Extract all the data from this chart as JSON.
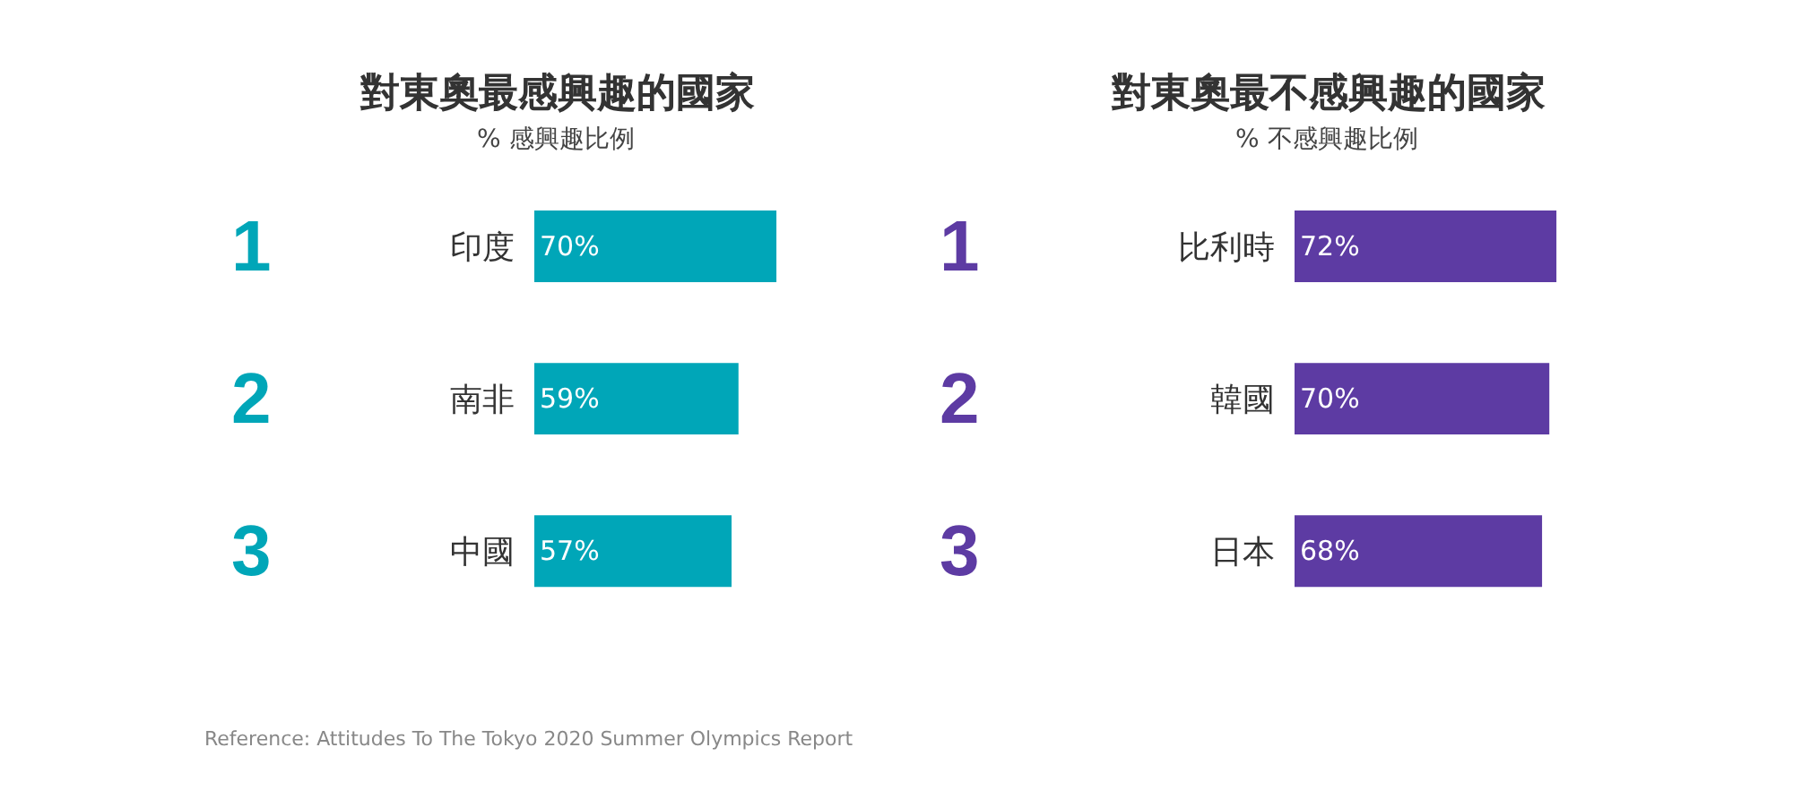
{
  "chart_data": [
    {
      "type": "bar",
      "orientation": "horizontal",
      "title": "對東奧最感興趣的國家",
      "subtitle": "% 感興趣比例",
      "categories": [
        "印度",
        "南非",
        "中國"
      ],
      "values": [
        70,
        59,
        57
      ],
      "value_labels": [
        "70%",
        "59%",
        "57%"
      ],
      "color": "#00a6b8",
      "annotations": [
        "1",
        "2",
        "3",
        "Reference: Attitudes To The Tokyo 2020 Summer Olympics Report"
      ]
    },
    {
      "type": "bar",
      "orientation": "horizontal",
      "title": "對東奧最不感興趣的國家",
      "subtitle": "% 不感興趣比例",
      "categories": [
        "比利時",
        "韓國",
        "日本"
      ],
      "values": [
        72,
        70,
        68
      ],
      "value_labels": [
        "72%",
        "70%",
        "68%"
      ],
      "color": "#5d3ba3",
      "annotations": [
        "1",
        "2",
        "3"
      ]
    }
  ]
}
